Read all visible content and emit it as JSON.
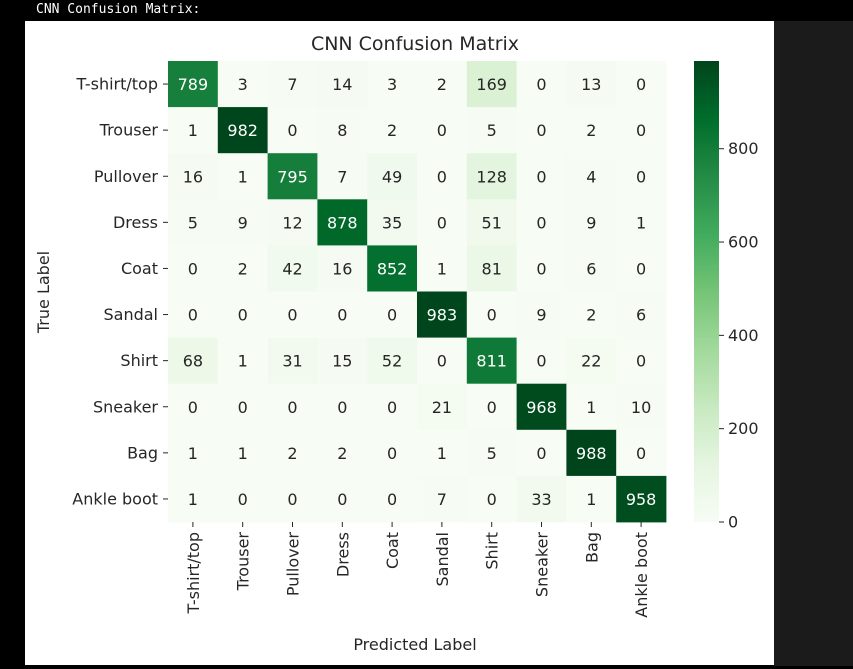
{
  "output": {
    "label": "CNN Confusion Matrix:"
  },
  "colors": {
    "page_background": "#000000",
    "figure_background": "#ffffff",
    "right_strip": "#1b1b1b",
    "colormap_low": "#f7fcf5",
    "colormap_mid": "#74c476",
    "colormap_high": "#00441b",
    "text_dark": "#262626",
    "text_light": "#ffffff"
  },
  "chart_data": {
    "type": "heatmap",
    "title": "CNN Confusion Matrix",
    "xlabel": "Predicted Label",
    "ylabel": "True Label",
    "colormap": "Greens",
    "x_categories": [
      "T-shirt/top",
      "Trouser",
      "Pullover",
      "Dress",
      "Coat",
      "Sandal",
      "Shirt",
      "Sneaker",
      "Bag",
      "Ankle boot"
    ],
    "y_categories": [
      "T-shirt/top",
      "Trouser",
      "Pullover",
      "Dress",
      "Coat",
      "Sandal",
      "Shirt",
      "Sneaker",
      "Bag",
      "Ankle boot"
    ],
    "values": [
      [
        789,
        3,
        7,
        14,
        3,
        2,
        169,
        0,
        13,
        0
      ],
      [
        1,
        982,
        0,
        8,
        2,
        0,
        5,
        0,
        2,
        0
      ],
      [
        16,
        1,
        795,
        7,
        49,
        0,
        128,
        0,
        4,
        0
      ],
      [
        5,
        9,
        12,
        878,
        35,
        0,
        51,
        0,
        9,
        1
      ],
      [
        0,
        2,
        42,
        16,
        852,
        1,
        81,
        0,
        6,
        0
      ],
      [
        0,
        0,
        0,
        0,
        0,
        983,
        0,
        9,
        2,
        6
      ],
      [
        68,
        1,
        31,
        15,
        52,
        0,
        811,
        0,
        22,
        0
      ],
      [
        0,
        0,
        0,
        0,
        0,
        21,
        0,
        968,
        1,
        10
      ],
      [
        1,
        1,
        2,
        2,
        0,
        1,
        5,
        0,
        988,
        0
      ],
      [
        1,
        0,
        0,
        0,
        0,
        7,
        0,
        33,
        1,
        958
      ]
    ],
    "vmin": 0,
    "vmax": 988,
    "annotations": true,
    "colorbar": {
      "ticks": [
        0,
        200,
        400,
        600,
        800
      ],
      "tick_labels": [
        "0",
        "200",
        "400",
        "600",
        "800"
      ]
    }
  }
}
